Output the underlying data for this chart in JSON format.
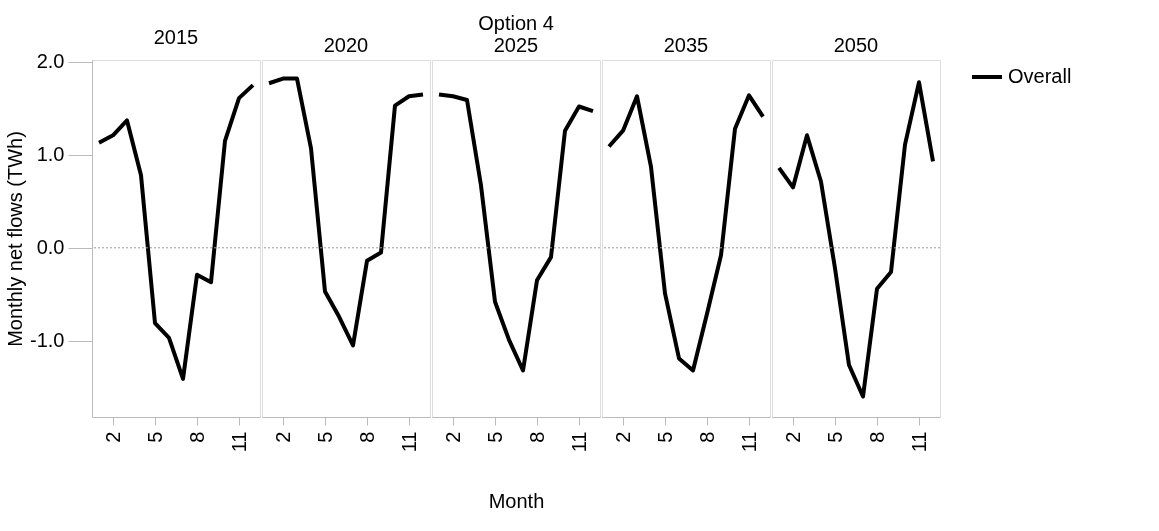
{
  "chart_data": [
    {
      "type": "line",
      "title": "2015",
      "ylabel": "Monthly net flows (TWh)",
      "x": [
        1,
        2,
        3,
        4,
        5,
        6,
        7,
        8,
        9,
        10,
        11,
        12
      ],
      "xlim": [
        0.5,
        12.5
      ],
      "xticks": [
        2,
        5,
        8,
        11
      ],
      "ylim": [
        -1.82,
        2.02
      ],
      "yticks": [
        {
          "value": 2,
          "label": "2.0"
        },
        {
          "value": 1,
          "label": "1.0"
        },
        {
          "value": 0,
          "label": "0.0"
        },
        {
          "value": -1,
          "label": "-1.0"
        }
      ],
      "ref_lines": [
        {
          "axis": "y",
          "value": 0,
          "color": "#999999",
          "line_style": "dotted"
        }
      ],
      "series": [
        {
          "color": "#000000",
          "values": [
            1.13,
            1.21,
            1.37,
            0.78,
            -0.81,
            -0.97,
            -1.41,
            -0.29,
            -0.37,
            1.15,
            1.61,
            1.75
          ]
        }
      ]
    },
    {
      "type": "line",
      "title": "2020",
      "tick_labels": "x",
      "x": [
        1,
        2,
        3,
        4,
        5,
        6,
        7,
        8,
        9,
        10,
        11,
        12
      ],
      "xlim": [
        0.5,
        12.5
      ],
      "xticks": [
        2,
        5,
        8,
        11
      ],
      "ylim": [
        -1.82,
        2.02
      ],
      "ref_lines": [
        {
          "axis": "y",
          "value": 0,
          "color": "#999999",
          "line_style": "dotted"
        }
      ],
      "series": [
        {
          "color": "#000000",
          "values": [
            1.77,
            1.82,
            1.82,
            1.07,
            -0.47,
            -0.74,
            -1.05,
            -0.14,
            -0.05,
            1.53,
            1.63,
            1.65
          ]
        }
      ]
    },
    {
      "type": "line",
      "title": "2025",
      "annotations": [
        "Option 4"
      ],
      "xlabel": "Month",
      "tick_labels": "x",
      "x": [
        1,
        2,
        3,
        4,
        5,
        6,
        7,
        8,
        9,
        10,
        11,
        12
      ],
      "xlim": [
        0.5,
        12.5
      ],
      "xticks": [
        2,
        5,
        8,
        11
      ],
      "ylim": [
        -1.82,
        2.02
      ],
      "ref_lines": [
        {
          "axis": "y",
          "value": 0,
          "color": "#999999",
          "line_style": "dotted"
        }
      ],
      "series": [
        {
          "color": "#000000",
          "values": [
            1.65,
            1.63,
            1.59,
            0.67,
            -0.58,
            -0.99,
            -1.32,
            -0.35,
            -0.1,
            1.26,
            1.52,
            1.47
          ]
        }
      ]
    },
    {
      "type": "line",
      "title": "2035",
      "tick_labels": "x",
      "x": [
        1,
        2,
        3,
        4,
        5,
        6,
        7,
        8,
        9,
        10,
        11,
        12
      ],
      "xlim": [
        0.5,
        12.5
      ],
      "xticks": [
        2,
        5,
        8,
        11
      ],
      "ylim": [
        -1.82,
        2.02
      ],
      "ref_lines": [
        {
          "axis": "y",
          "value": 0,
          "color": "#999999",
          "line_style": "dotted"
        }
      ],
      "series": [
        {
          "color": "#000000",
          "values": [
            1.09,
            1.26,
            1.63,
            0.87,
            -0.49,
            -1.19,
            -1.32,
            -0.71,
            -0.08,
            1.28,
            1.64,
            1.41
          ]
        }
      ]
    },
    {
      "type": "line",
      "title": "2050",
      "tick_labels": "x",
      "legend": "right",
      "x": [
        1,
        2,
        3,
        4,
        5,
        6,
        7,
        8,
        9,
        10,
        11,
        12
      ],
      "xlim": [
        0.5,
        12.5
      ],
      "xticks": [
        2,
        5,
        8,
        11
      ],
      "ylim": [
        -1.82,
        2.02
      ],
      "ref_lines": [
        {
          "axis": "y",
          "value": 0,
          "color": "#999999",
          "line_style": "dotted"
        }
      ],
      "series": [
        {
          "name": "Overall",
          "color": "#000000",
          "values": [
            0.86,
            0.65,
            1.21,
            0.71,
            -0.22,
            -1.26,
            -1.6,
            -0.44,
            -0.26,
            1.11,
            1.78,
            0.93
          ]
        }
      ]
    }
  ]
}
